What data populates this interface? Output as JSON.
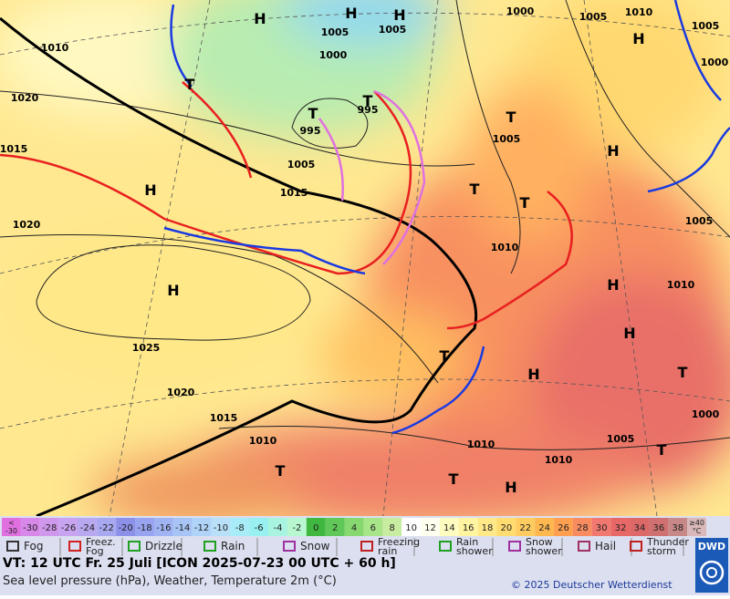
{
  "map": {
    "centers": [
      "H",
      "H",
      "H",
      "H",
      "H",
      "H",
      "H",
      "H",
      "H",
      "H",
      "T",
      "T",
      "T",
      "T",
      "T",
      "T",
      "T",
      "T",
      "T",
      "T",
      "H",
      "T"
    ],
    "isobar_labels": [
      "1000",
      "1005",
      "1010",
      "1005",
      "1000",
      "1010",
      "1020",
      "1015",
      "1020",
      "1005",
      "1000",
      "1005",
      "995",
      "995",
      "1005",
      "1015",
      "1005",
      "1010",
      "1005",
      "1010",
      "1025",
      "1020",
      "1015",
      "1010",
      "1010",
      "1010",
      "1005",
      "1000"
    ]
  },
  "temperature_scale": [
    {
      "label": [
        "<",
        "-30"
      ],
      "color": "#e070e0"
    },
    {
      "label": [
        "-30"
      ],
      "color": "#d888e8"
    },
    {
      "label": [
        "-28"
      ],
      "color": "#d098ec"
    },
    {
      "label": [
        "-26"
      ],
      "color": "#c8a4f0"
    },
    {
      "label": [
        "-24"
      ],
      "color": "#b8a8f0"
    },
    {
      "label": [
        "-22"
      ],
      "color": "#a8a8f0"
    },
    {
      "label": [
        "-20"
      ],
      "color": "#8c90e8"
    },
    {
      "label": [
        "-18"
      ],
      "color": "#98a4f0"
    },
    {
      "label": [
        "-16"
      ],
      "color": "#a0b4f4"
    },
    {
      "label": [
        "-14"
      ],
      "color": "#a8c4f4"
    },
    {
      "label": [
        "-12"
      ],
      "color": "#b0d4f8"
    },
    {
      "label": [
        "-10"
      ],
      "color": "#b8e0f8"
    },
    {
      "label": [
        "-8"
      ],
      "color": "#a8ecf8"
    },
    {
      "label": [
        "-6"
      ],
      "color": "#98f0f0"
    },
    {
      "label": [
        "-4"
      ],
      "color": "#a8f4e0"
    },
    {
      "label": [
        "-2"
      ],
      "color": "#b8f8d0"
    },
    {
      "label": [
        "0"
      ],
      "color": "#40b840"
    },
    {
      "label": [
        "2"
      ],
      "color": "#60c858"
    },
    {
      "label": [
        "4"
      ],
      "color": "#88d870"
    },
    {
      "label": [
        "6"
      ],
      "color": "#a8e488"
    },
    {
      "label": [
        "8"
      ],
      "color": "#c8eca0"
    },
    {
      "label": [
        "10"
      ],
      "color": "#ffffff"
    },
    {
      "label": [
        "12"
      ],
      "color": "#fffff0"
    },
    {
      "label": [
        "14"
      ],
      "color": "#fffcc0"
    },
    {
      "label": [
        "16"
      ],
      "color": "#fff4a0"
    },
    {
      "label": [
        "18"
      ],
      "color": "#ffe888"
    },
    {
      "label": [
        "20"
      ],
      "color": "#ffdc70"
    },
    {
      "label": [
        "22"
      ],
      "color": "#ffcc60"
    },
    {
      "label": [
        "24"
      ],
      "color": "#ffb850"
    },
    {
      "label": [
        "26"
      ],
      "color": "#ffa050"
    },
    {
      "label": [
        "28"
      ],
      "color": "#f88c60"
    },
    {
      "label": [
        "30"
      ],
      "color": "#f07870"
    },
    {
      "label": [
        "32"
      ],
      "color": "#e86868"
    },
    {
      "label": [
        "34"
      ],
      "color": "#dc6868"
    },
    {
      "label": [
        "36"
      ],
      "color": "#d07070"
    },
    {
      "label": [
        "38"
      ],
      "color": "#c88888"
    },
    {
      "label": [
        "≥40",
        "°C"
      ],
      "color": "#d8b8b8"
    }
  ],
  "weather_legend": [
    [
      "Fog"
    ],
    [
      "Freez.",
      "Fog"
    ],
    [
      "Drizzle"
    ],
    [
      "Rain"
    ],
    [
      "Snow"
    ],
    [
      "Freezing",
      "rain"
    ],
    [
      "Rain",
      "shower"
    ],
    [
      "Snow",
      "shower"
    ],
    [
      "Hail"
    ],
    [
      "Thunder",
      "storm"
    ]
  ],
  "valid_time": "VT: 12 UTC Fr.  25 Juli [ICON 2025-07-23  00 UTC + 60 h]",
  "description": "Sea level pressure (hPa), Weather, Temperature 2m (°C)",
  "copyright": "© 2025 Deutscher Wetterdienst",
  "logo": "DWD"
}
